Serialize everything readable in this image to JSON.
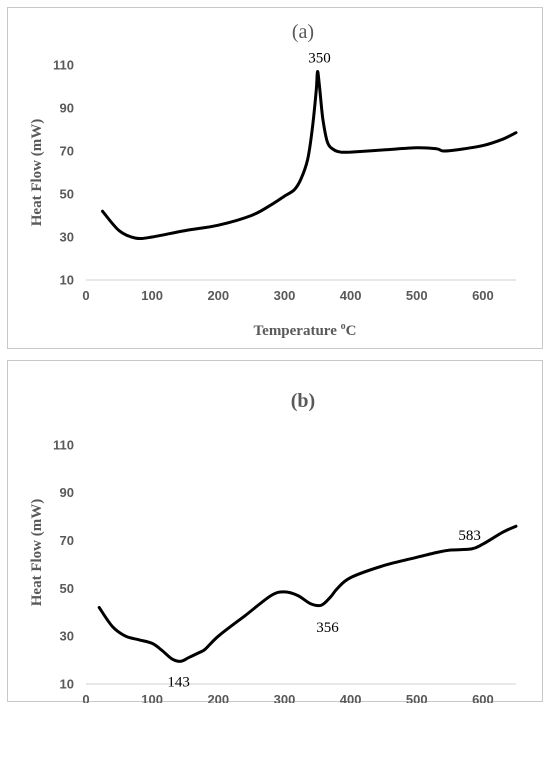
{
  "chart_data": [
    {
      "type": "line",
      "title": "(a)",
      "xlabel": "Temperature ",
      "xlabel_sup": "o",
      "xlabel_unit": "C",
      "ylabel": "Heat Flow (mW)",
      "xlim": [
        0,
        650
      ],
      "ylim": [
        10,
        110
      ],
      "xticks": [
        0,
        100,
        200,
        300,
        400,
        500,
        600
      ],
      "yticks": [
        10,
        30,
        50,
        70,
        90,
        110
      ],
      "grid": false,
      "series": [
        {
          "x": [
            25,
            50,
            75,
            100,
            150,
            200,
            250,
            280,
            300,
            315,
            325,
            335,
            342,
            348,
            350,
            353,
            358,
            365,
            375,
            385,
            400,
            450,
            500,
            530,
            540,
            560,
            600,
            630,
            650
          ],
          "values": [
            42,
            33,
            29.5,
            30,
            33,
            35.5,
            40,
            45,
            49,
            52,
            57,
            66,
            80,
            98,
            107,
            100,
            85,
            74,
            70.5,
            69.5,
            69.5,
            70.5,
            71.5,
            71,
            70,
            70.5,
            72.5,
            75.5,
            78.5
          ]
        }
      ],
      "annotations": [
        {
          "text": "350",
          "x": 350,
          "y": 107
        }
      ],
      "title_bold": false
    },
    {
      "type": "line",
      "title": "(b)",
      "xlabel": "Temperature ",
      "xlabel_sup": "o",
      "xlabel_unit": "C",
      "ylabel": "Heat Flow (mW)",
      "xlim": [
        0,
        650
      ],
      "ylim": [
        10,
        120
      ],
      "xticks": [
        0,
        100,
        200,
        300,
        400,
        500,
        600
      ],
      "yticks": [
        10,
        30,
        50,
        70,
        90,
        110
      ],
      "grid": false,
      "series": [
        {
          "x": [
            20,
            40,
            60,
            80,
            100,
            115,
            130,
            143,
            155,
            170,
            180,
            200,
            240,
            280,
            300,
            320,
            340,
            356,
            370,
            380,
            400,
            450,
            500,
            530,
            550,
            583,
            600,
            630,
            650
          ],
          "values": [
            42,
            34,
            30,
            28.5,
            27,
            24,
            20.5,
            19.5,
            21,
            23,
            24.5,
            30,
            38.5,
            47,
            48.5,
            47,
            43.5,
            43,
            46.5,
            50,
            54.5,
            59.5,
            63,
            65,
            66,
            66.5,
            68.5,
            73.5,
            76
          ]
        }
      ],
      "annotations": [
        {
          "text": "143",
          "x": 143,
          "y": 19.5
        },
        {
          "text": "356",
          "x": 356,
          "y": 43
        },
        {
          "text": "583",
          "x": 583,
          "y": 66.5
        }
      ],
      "title_bold": true
    }
  ]
}
